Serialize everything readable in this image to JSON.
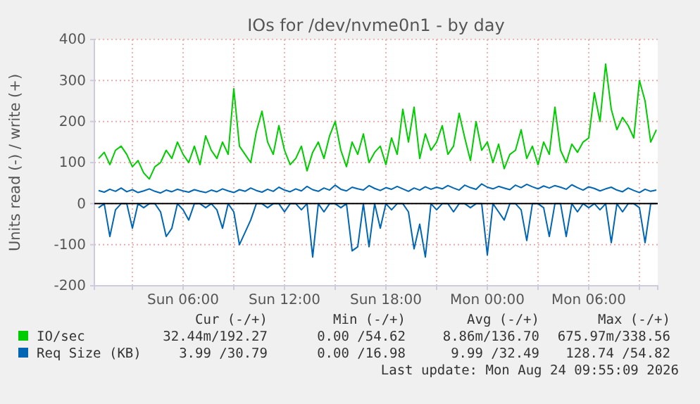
{
  "chart_data": {
    "type": "line",
    "title": "IOs for /dev/nvme0n1 - by day",
    "ylabel": "Units read (-) / write (+)",
    "x": [
      "2026-08-23T01:00",
      "2026-08-23T01:20",
      "2026-08-23T01:40",
      "2026-08-23T02:00",
      "2026-08-23T02:20",
      "2026-08-23T02:40",
      "2026-08-23T03:00",
      "2026-08-23T03:20",
      "2026-08-23T03:40",
      "2026-08-23T04:00",
      "2026-08-23T04:20",
      "2026-08-23T04:40",
      "2026-08-23T05:00",
      "2026-08-23T05:20",
      "2026-08-23T05:40",
      "2026-08-23T06:00",
      "2026-08-23T06:20",
      "2026-08-23T06:40",
      "2026-08-23T07:00",
      "2026-08-23T07:20",
      "2026-08-23T07:40",
      "2026-08-23T08:00",
      "2026-08-23T08:20",
      "2026-08-23T08:40",
      "2026-08-23T09:00",
      "2026-08-23T09:20",
      "2026-08-23T09:40",
      "2026-08-23T10:00",
      "2026-08-23T10:20",
      "2026-08-23T10:40",
      "2026-08-23T11:00",
      "2026-08-23T11:20",
      "2026-08-23T11:40",
      "2026-08-23T12:00",
      "2026-08-23T12:20",
      "2026-08-23T12:40",
      "2026-08-23T13:00",
      "2026-08-23T13:20",
      "2026-08-23T13:40",
      "2026-08-23T14:00",
      "2026-08-23T14:20",
      "2026-08-23T14:40",
      "2026-08-23T15:00",
      "2026-08-23T15:20",
      "2026-08-23T15:40",
      "2026-08-23T16:00",
      "2026-08-23T16:20",
      "2026-08-23T16:40",
      "2026-08-23T17:00",
      "2026-08-23T17:20",
      "2026-08-23T17:40",
      "2026-08-23T18:00",
      "2026-08-23T18:20",
      "2026-08-23T18:40",
      "2026-08-23T19:00",
      "2026-08-23T19:20",
      "2026-08-23T19:40",
      "2026-08-23T20:00",
      "2026-08-23T20:20",
      "2026-08-23T20:40",
      "2026-08-23T21:00",
      "2026-08-23T21:20",
      "2026-08-23T21:40",
      "2026-08-23T22:00",
      "2026-08-23T22:20",
      "2026-08-23T22:40",
      "2026-08-23T23:00",
      "2026-08-23T23:20",
      "2026-08-23T23:40",
      "2026-08-24T00:00",
      "2026-08-24T00:20",
      "2026-08-24T00:40",
      "2026-08-24T01:00",
      "2026-08-24T01:20",
      "2026-08-24T01:40",
      "2026-08-24T02:00",
      "2026-08-24T02:20",
      "2026-08-24T02:40",
      "2026-08-24T03:00",
      "2026-08-24T03:20",
      "2026-08-24T03:40",
      "2026-08-24T04:00",
      "2026-08-24T04:20",
      "2026-08-24T04:40",
      "2026-08-24T05:00",
      "2026-08-24T05:20",
      "2026-08-24T05:40",
      "2026-08-24T06:00",
      "2026-08-24T06:20",
      "2026-08-24T06:40",
      "2026-08-24T07:00",
      "2026-08-24T07:20",
      "2026-08-24T07:40",
      "2026-08-24T08:00",
      "2026-08-24T08:20",
      "2026-08-24T08:40",
      "2026-08-24T09:00",
      "2026-08-24T09:20",
      "2026-08-24T09:40",
      "2026-08-24T10:00"
    ],
    "series": [
      {
        "name": "IO/sec",
        "color": "#00cc00",
        "values": [
          110,
          125,
          95,
          130,
          140,
          120,
          90,
          105,
          75,
          60,
          90,
          100,
          130,
          110,
          150,
          120,
          100,
          140,
          95,
          165,
          130,
          110,
          150,
          120,
          280,
          140,
          120,
          100,
          175,
          225,
          150,
          120,
          190,
          130,
          95,
          110,
          140,
          80,
          125,
          150,
          110,
          165,
          200,
          130,
          90,
          150,
          120,
          170,
          100,
          125,
          140,
          95,
          160,
          120,
          230,
          150,
          235,
          110,
          170,
          130,
          150,
          190,
          120,
          140,
          220,
          160,
          105,
          200,
          130,
          150,
          100,
          145,
          85,
          120,
          130,
          180,
          110,
          140,
          95,
          150,
          120,
          235,
          130,
          100,
          145,
          125,
          150,
          160,
          270,
          200,
          340,
          230,
          180,
          210,
          190,
          160,
          300,
          250,
          150,
          180
        ]
      },
      {
        "name": "Req Size (KB)",
        "color": "#0066b3",
        "values": [
          32,
          28,
          35,
          30,
          38,
          29,
          34,
          27,
          31,
          36,
          30,
          26,
          33,
          29,
          35,
          31,
          28,
          34,
          30,
          27,
          33,
          29,
          36,
          31,
          27,
          34,
          30,
          38,
          32,
          28,
          35,
          30,
          40,
          33,
          29,
          36,
          31,
          42,
          34,
          30,
          38,
          33,
          45,
          35,
          31,
          40,
          36,
          33,
          44,
          37,
          32,
          39,
          35,
          42,
          36,
          30,
          38,
          33,
          41,
          35,
          40,
          36,
          44,
          38,
          33,
          45,
          39,
          35,
          48,
          40,
          36,
          42,
          38,
          34,
          45,
          39,
          47,
          41,
          36,
          43,
          38,
          44,
          40,
          35,
          46,
          39,
          33,
          41,
          37,
          31,
          36,
          40,
          33,
          29,
          38,
          32,
          27,
          35,
          30,
          33
        ]
      },
      {
        "color": "#0066b3",
        "values": [
          -10,
          0,
          -80,
          -15,
          0,
          0,
          -60,
          0,
          -10,
          0,
          0,
          -20,
          -80,
          -60,
          0,
          -15,
          -40,
          0,
          0,
          -10,
          0,
          -15,
          -60,
          0,
          -20,
          -100,
          -70,
          -40,
          0,
          0,
          -10,
          0,
          0,
          -20,
          0,
          0,
          -15,
          0,
          -130,
          0,
          -20,
          0,
          0,
          -10,
          0,
          -115,
          -105,
          0,
          -105,
          0,
          -60,
          0,
          -15,
          0,
          0,
          -20,
          -110,
          -50,
          -130,
          0,
          -15,
          0,
          0,
          -20,
          0,
          0,
          -10,
          0,
          0,
          -125,
          0,
          -20,
          -40,
          0,
          0,
          -15,
          -90,
          0,
          0,
          -10,
          -80,
          0,
          0,
          -80,
          0,
          -20,
          0,
          -10,
          0,
          -15,
          0,
          -95,
          0,
          -20,
          0,
          0,
          -10,
          -95,
          0,
          0
        ]
      }
    ],
    "xlim": [
      "2026-08-23T00:45",
      "2026-08-24T10:05"
    ],
    "xticks": [
      {
        "value": "2026-08-23T03:00",
        "label": null
      },
      {
        "value": "2026-08-23T06:00",
        "label": "Sun 06:00"
      },
      {
        "value": "2026-08-23T09:00",
        "label": null
      },
      {
        "value": "2026-08-23T12:00",
        "label": "Sun 12:00"
      },
      {
        "value": "2026-08-23T15:00",
        "label": null
      },
      {
        "value": "2026-08-23T18:00",
        "label": "Sun 18:00"
      },
      {
        "value": "2026-08-23T21:00",
        "label": null
      },
      {
        "value": "2026-08-24T00:00",
        "label": "Mon 00:00"
      },
      {
        "value": "2026-08-24T03:00",
        "label": null
      },
      {
        "value": "2026-08-24T06:00",
        "label": "Mon 06:00"
      },
      {
        "value": "2026-08-24T09:00",
        "label": null
      }
    ],
    "ylim": [
      -200,
      400
    ],
    "yticks": [
      -200,
      -100,
      0,
      100,
      200,
      300,
      400
    ],
    "grid": true,
    "legend": "bottom",
    "ref_lines": [
      {
        "axis": "y",
        "value": 0,
        "color": "#000000"
      }
    ],
    "annotations": [
      "Cur (-/+)",
      "Min (-/+)",
      "Avg (-/+)",
      "Max (-/+)",
      "32.44m/192.27",
      "0.00 /54.62",
      "8.86m/136.70",
      "675.97m/338.56",
      "3.99 /30.79",
      "0.00 /16.98",
      "9.99 /32.49",
      "128.74 /54.82",
      "Last update: Mon Aug 24 09:55:09 2026"
    ]
  }
}
